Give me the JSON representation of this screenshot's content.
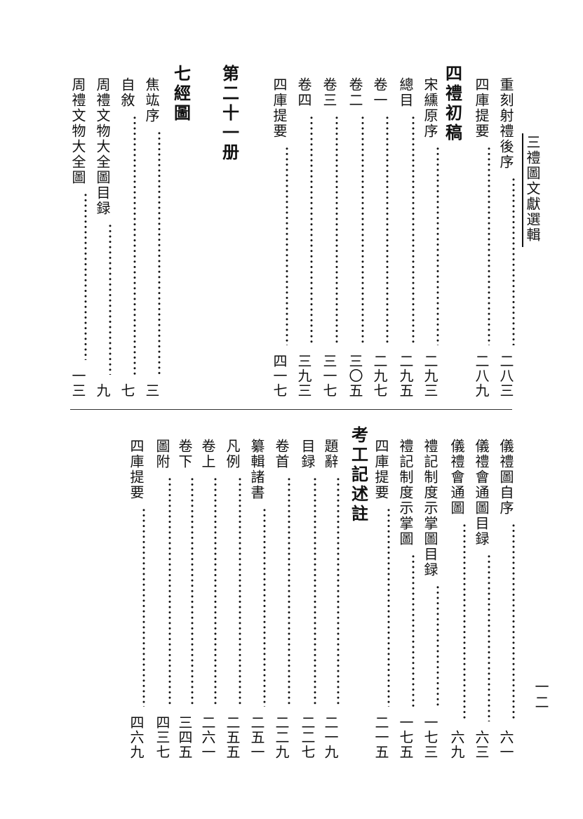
{
  "running_title": "三禮圖文獻選輯",
  "page_number": "一二",
  "top": [
    {
      "type": "entry",
      "title": "重刻射禮後序",
      "page": "二八三"
    },
    {
      "type": "entry",
      "title": "四庫提要",
      "page": "二八九"
    },
    {
      "type": "heading",
      "title": "四禮初稿"
    },
    {
      "type": "entry",
      "title": "宋纁原序",
      "page": "二九三"
    },
    {
      "type": "entry",
      "title": "總目",
      "page": "二九五"
    },
    {
      "type": "entry",
      "title": "卷一",
      "page": "二九七"
    },
    {
      "type": "entry",
      "title": "卷二",
      "page": "三〇五"
    },
    {
      "type": "entry",
      "title": "卷三",
      "page": "三一七"
    },
    {
      "type": "entry",
      "title": "卷四",
      "page": "三九三"
    },
    {
      "type": "entry",
      "title": "四庫提要",
      "page": "四一七"
    },
    {
      "type": "volume",
      "title": "第二十一册"
    },
    {
      "type": "heading",
      "title": "七經圖"
    },
    {
      "type": "entry",
      "title": "焦竑序",
      "page": "三"
    },
    {
      "type": "entry",
      "title": "自敘",
      "page": "七"
    },
    {
      "type": "entry",
      "title": "周禮文物大全圖目録",
      "page": "九"
    },
    {
      "type": "entry",
      "title": "周禮文物大全圖",
      "page": "一三"
    }
  ],
  "bottom": [
    {
      "type": "entry",
      "title": "儀禮圖自序",
      "page": "六一"
    },
    {
      "type": "entry",
      "title": "儀禮會通圖目録",
      "page": "六三"
    },
    {
      "type": "entry",
      "title": "儀禮會通圖",
      "page": "六九"
    },
    {
      "type": "entry",
      "title": "禮記制度示掌圖目録",
      "page": "一七三"
    },
    {
      "type": "entry",
      "title": "禮記制度示掌圖",
      "page": "一七五"
    },
    {
      "type": "entry",
      "title": "四庫提要",
      "page": "二一五"
    },
    {
      "type": "heading",
      "title": "考工記述註"
    },
    {
      "type": "entry",
      "title": "題辭",
      "page": "二一九"
    },
    {
      "type": "entry",
      "title": "目録",
      "page": "二二七"
    },
    {
      "type": "entry",
      "title": "卷首",
      "page": "二二九"
    },
    {
      "type": "entry",
      "title": "纂輯諸書",
      "page": "二五一"
    },
    {
      "type": "entry",
      "title": "凡例",
      "page": "二五五"
    },
    {
      "type": "entry",
      "title": "卷上",
      "page": "二六一"
    },
    {
      "type": "entry",
      "title": "卷下",
      "page": "三四五"
    },
    {
      "type": "entry",
      "title": "圖附",
      "page": "四三七"
    },
    {
      "type": "entry",
      "title": "四庫提要",
      "page": "四六九"
    }
  ]
}
